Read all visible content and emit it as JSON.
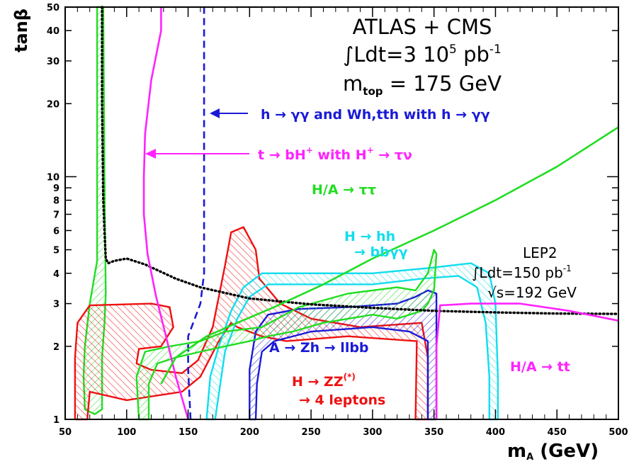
{
  "chart_data": {
    "type": "line",
    "title": "",
    "xlabel": "m_A (GeV)",
    "xlabel_main": "m",
    "xlabel_sub": "A",
    "xlabel_rest": " (GeV)",
    "ylabel": "tanβ",
    "xlim": [
      50,
      500
    ],
    "ylim": [
      1,
      50
    ],
    "yscale": "log",
    "grid": false,
    "x_ticks": [
      "50",
      "100",
      "150",
      "200",
      "250",
      "300",
      "350",
      "400",
      "450",
      "500"
    ],
    "y_ticks": [
      "1",
      "2",
      "3",
      "4",
      "5",
      "6",
      "7",
      "8",
      "9",
      "10",
      "20",
      "30",
      "40",
      "50"
    ],
    "header": {
      "line1": "ATLAS + CMS",
      "line2_pre": "∫Ldt=3 10",
      "line2_exp": "5",
      "line2_post": " pb",
      "line2_exp2": "-1",
      "line3_pre": "m",
      "line3_sub": "top",
      "line3_post": " = 175 GeV"
    },
    "annotations": {
      "h_gamma": "h → γγ and Wh,tth with h → γγ",
      "t_bh": "t  →  bH",
      "t_bh_sup": "+",
      "t_bh_mid": " with H",
      "t_bh_sup2": "+",
      "t_bh_end": " → τν",
      "ha_tautau": "H/A  →  ττ",
      "h_hh": "H → hh",
      "bbgg": "→ bbγγ",
      "lep2_1": "LEP2",
      "lep2_2": "∫Ldt=150 pb",
      "lep2_2_sup": "-1",
      "lep2_3": "√s=192 GeV",
      "a_zh": "A → Zh → llbb",
      "h_zz": "H → ZZ",
      "h_zz_sup": "(*)",
      "four_leptons": "→ 4 leptons",
      "ha_tt": "H/A  →  tt"
    },
    "colors": {
      "green": "#22dd22",
      "magenta": "#ff22ff",
      "blue": "#1a1ad6",
      "red": "#ee1111",
      "cyan": "#11ddee",
      "black": "#000000"
    },
    "series": [
      {
        "name": "LEP2",
        "color": "#000000",
        "style": "dotted",
        "points": [
          [
            80,
            50
          ],
          [
            80,
            20
          ],
          [
            81,
            8
          ],
          [
            82,
            6
          ],
          [
            83,
            4.6
          ],
          [
            85,
            4.4
          ],
          [
            90,
            4.5
          ],
          [
            100,
            4.6
          ],
          [
            115,
            4.35
          ],
          [
            140,
            3.8
          ],
          [
            160,
            3.5
          ],
          [
            200,
            3.15
          ],
          [
            250,
            2.98
          ],
          [
            300,
            2.88
          ],
          [
            350,
            2.8
          ],
          [
            400,
            2.76
          ],
          [
            450,
            2.73
          ],
          [
            500,
            2.72
          ]
        ]
      },
      {
        "name": "h → γγ",
        "color": "#1a1ad6",
        "style": "dashed",
        "points": [
          [
            152,
            1
          ],
          [
            150,
            1.6
          ],
          [
            150,
            2.2
          ],
          [
            160,
            3
          ],
          [
            163,
            4
          ],
          [
            163,
            6
          ],
          [
            163,
            10
          ],
          [
            163,
            20
          ],
          [
            163,
            50
          ]
        ]
      },
      {
        "name": "t → bH+",
        "color": "#ff22ff",
        "style": "solid",
        "points": [
          [
            150,
            1
          ],
          [
            140,
            1.5
          ],
          [
            132,
            2.2
          ],
          [
            124,
            3.2
          ],
          [
            117,
            4.8
          ],
          [
            114,
            7
          ],
          [
            114,
            10
          ],
          [
            115,
            15
          ],
          [
            120,
            25
          ],
          [
            128,
            40
          ],
          [
            128,
            50
          ]
        ]
      },
      {
        "name": "H/A → ττ",
        "color": "#22dd22",
        "style": "solid",
        "points": [
          [
            128,
            1.4
          ],
          [
            140,
            1.8
          ],
          [
            165,
            2.2
          ],
          [
            190,
            2.5
          ],
          [
            220,
            2.9
          ],
          [
            260,
            3.6
          ],
          [
            300,
            4.6
          ],
          [
            350,
            6
          ],
          [
            400,
            8
          ],
          [
            450,
            11
          ],
          [
            500,
            16
          ]
        ]
      },
      {
        "name": "H/A → tt",
        "color": "#ff22ff",
        "style": "solid",
        "points": [
          [
            352,
            1
          ],
          [
            352,
            2
          ],
          [
            355,
            2.95
          ],
          [
            380,
            3
          ],
          [
            420,
            3
          ],
          [
            460,
            2.8
          ],
          [
            500,
            2.55
          ]
        ]
      }
    ],
    "regions": [
      {
        "name": "H/A → ττ low-mass",
        "color": "#22dd22",
        "points": [
          [
            76,
            50
          ],
          [
            76,
            10
          ],
          [
            76,
            4.5
          ],
          [
            70,
            3
          ],
          [
            66,
            2
          ],
          [
            65,
            1.5
          ],
          [
            66,
            1.1
          ],
          [
            74,
            1.05
          ],
          [
            80,
            1.1
          ],
          [
            80,
            1.8
          ],
          [
            82,
            2.5
          ],
          [
            83,
            3.3
          ],
          [
            82,
            10
          ],
          [
            81,
            50
          ]
        ]
      },
      {
        "name": "H → ZZ",
        "color": "#ee1111",
        "points": [
          [
            58,
            1
          ],
          [
            58,
            1.8
          ],
          [
            60,
            2.5
          ],
          [
            70,
            2.95
          ],
          [
            120,
            3
          ],
          [
            135,
            2.9
          ],
          [
            138,
            2.4
          ],
          [
            128,
            2
          ],
          [
            110,
            1.95
          ],
          [
            108,
            1.7
          ],
          [
            120,
            1.6
          ],
          [
            145,
            1.55
          ],
          [
            158,
            1.75
          ],
          [
            170,
            2.4
          ],
          [
            180,
            4.3
          ],
          [
            185,
            5.9
          ],
          [
            195,
            6.2
          ],
          [
            205,
            5
          ],
          [
            208,
            3.8
          ],
          [
            225,
            3
          ],
          [
            250,
            2.6
          ],
          [
            290,
            2.4
          ],
          [
            340,
            2.5
          ],
          [
            345,
            1.8
          ],
          [
            345,
            1.2
          ],
          [
            345,
            1
          ],
          [
            335,
            1
          ],
          [
            336,
            2.1
          ],
          [
            280,
            2.2
          ],
          [
            230,
            2.1
          ],
          [
            210,
            2.2
          ],
          [
            190,
            2.4
          ],
          [
            185,
            2.5
          ],
          [
            175,
            2.1
          ],
          [
            160,
            1.5
          ],
          [
            145,
            1.3
          ],
          [
            100,
            1.2
          ],
          [
            70,
            1.3
          ],
          [
            68,
            1
          ]
        ]
      },
      {
        "name": "A → Zh → llbb",
        "color": "#1a1ad6",
        "points": [
          [
            200,
            1
          ],
          [
            200,
            1.6
          ],
          [
            205,
            2.3
          ],
          [
            215,
            2.7
          ],
          [
            240,
            2.85
          ],
          [
            280,
            2.9
          ],
          [
            320,
            3
          ],
          [
            335,
            3.2
          ],
          [
            345,
            3.4
          ],
          [
            352,
            3.3
          ],
          [
            352,
            2
          ],
          [
            352,
            1
          ],
          [
            345,
            1
          ],
          [
            345,
            2.1
          ],
          [
            330,
            2.3
          ],
          [
            300,
            2.4
          ],
          [
            250,
            2.3
          ],
          [
            220,
            2.1
          ],
          [
            210,
            1.9
          ],
          [
            206,
            1.4
          ],
          [
            205,
            1
          ]
        ]
      },
      {
        "name": "H → hh",
        "color": "#11ddee",
        "points": [
          [
            165,
            1
          ],
          [
            168,
            1.5
          ],
          [
            175,
            2
          ],
          [
            185,
            2.8
          ],
          [
            195,
            3.5
          ],
          [
            210,
            4
          ],
          [
            250,
            4
          ],
          [
            300,
            4
          ],
          [
            345,
            4.2
          ],
          [
            380,
            4.4
          ],
          [
            395,
            4
          ],
          [
            400,
            3
          ],
          [
            402,
            1.5
          ],
          [
            402,
            1
          ],
          [
            395,
            1
          ],
          [
            395,
            1.5
          ],
          [
            392,
            2.5
          ],
          [
            385,
            3.5
          ],
          [
            370,
            3.9
          ],
          [
            340,
            3.8
          ],
          [
            300,
            3.6
          ],
          [
            260,
            3.6
          ],
          [
            215,
            3.6
          ],
          [
            200,
            3.2
          ],
          [
            190,
            2.6
          ],
          [
            180,
            1.9
          ],
          [
            172,
            1
          ]
        ]
      },
      {
        "name": "H/A → ττ high-mass",
        "color": "#22dd22",
        "points": [
          [
            110,
            1
          ],
          [
            108,
            1.5
          ],
          [
            115,
            1.9
          ],
          [
            135,
            2
          ],
          [
            160,
            2.1
          ],
          [
            180,
            2.3
          ],
          [
            210,
            2.4
          ],
          [
            240,
            2.9
          ],
          [
            280,
            3.3
          ],
          [
            320,
            3.5
          ],
          [
            335,
            3.4
          ],
          [
            345,
            4
          ],
          [
            350,
            5
          ],
          [
            352,
            4.8
          ],
          [
            350,
            3.4
          ],
          [
            345,
            3
          ],
          [
            340,
            2.8
          ],
          [
            320,
            2.6
          ],
          [
            300,
            2.7
          ],
          [
            260,
            2.5
          ],
          [
            235,
            2.3
          ],
          [
            215,
            2.2
          ],
          [
            200,
            2.1
          ],
          [
            180,
            2
          ],
          [
            160,
            1.9
          ],
          [
            140,
            1.8
          ],
          [
            125,
            1.7
          ],
          [
            118,
            1.4
          ],
          [
            118,
            1
          ]
        ]
      }
    ]
  }
}
